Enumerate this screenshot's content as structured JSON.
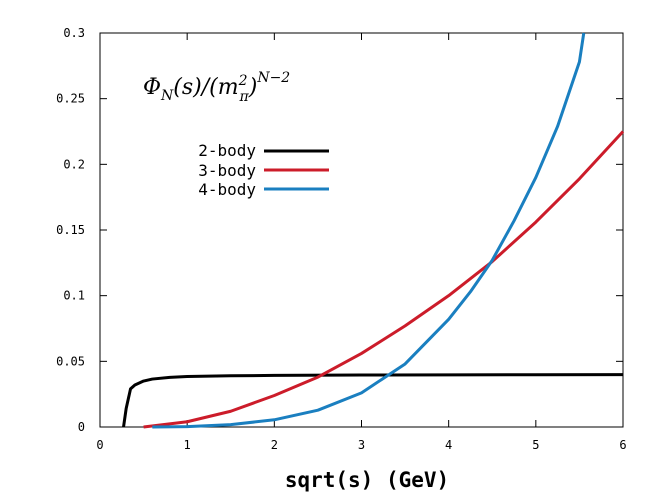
{
  "chart_data": {
    "type": "line",
    "title": "",
    "annotation": {
      "base": "Φ",
      "sub1": "N",
      "mid": "(s)/(m",
      "sup1": "2",
      "sub2": "π",
      "close": ")",
      "sup2": "N−2"
    },
    "xlabel": "sqrt(s) (GeV)",
    "ylabel": "",
    "xlim": [
      0,
      6
    ],
    "ylim": [
      0,
      0.3
    ],
    "x_ticks": [
      "0",
      "1",
      "2",
      "3",
      "4",
      "5",
      "6"
    ],
    "y_ticks": [
      "0",
      "0.05",
      "0.1",
      "0.15",
      "0.2",
      "0.25",
      "0.3"
    ],
    "legend_position": "upper-left",
    "series": [
      {
        "name": "2-body",
        "color": "#000000",
        "x": [
          0.27,
          0.3,
          0.35,
          0.4,
          0.5,
          0.6,
          0.8,
          1.0,
          1.5,
          2.0,
          3.0,
          4.0,
          5.0,
          6.0
        ],
        "y": [
          0.0,
          0.014,
          0.029,
          0.032,
          0.035,
          0.0365,
          0.0378,
          0.0385,
          0.039,
          0.0393,
          0.0396,
          0.0397,
          0.0398,
          0.0399
        ]
      },
      {
        "name": "3-body",
        "color": "#cc1c2a",
        "x": [
          0.5,
          1.0,
          1.5,
          2.0,
          2.5,
          3.0,
          3.5,
          4.0,
          4.5,
          5.0,
          5.5,
          6.0
        ],
        "y": [
          0.0,
          0.004,
          0.012,
          0.024,
          0.038,
          0.056,
          0.077,
          0.1,
          0.126,
          0.156,
          0.189,
          0.225
        ]
      },
      {
        "name": "4-body",
        "color": "#1a7fc0",
        "x": [
          0.6,
          1.0,
          1.5,
          2.0,
          2.5,
          3.0,
          3.5,
          4.0,
          4.25,
          4.5,
          4.75,
          5.0,
          5.25,
          5.5,
          5.55
        ],
        "y": [
          0.0,
          0.0003,
          0.0018,
          0.0055,
          0.0128,
          0.026,
          0.048,
          0.082,
          0.103,
          0.127,
          0.157,
          0.19,
          0.229,
          0.278,
          0.3
        ]
      }
    ]
  }
}
